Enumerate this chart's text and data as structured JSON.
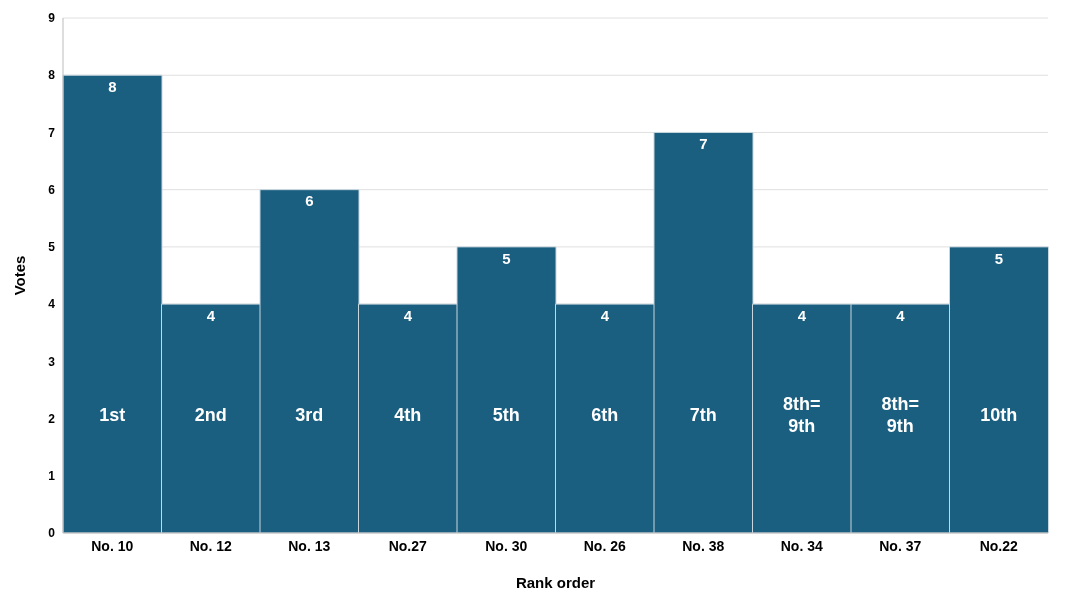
{
  "chart_data": {
    "type": "bar",
    "xlabel": "Rank order",
    "ylabel": "Votes",
    "categories": [
      "No. 10",
      "No. 12",
      "No. 13",
      "No.27",
      "No. 30",
      "No. 26",
      "No. 38",
      "No. 34",
      "No. 37",
      "No.22"
    ],
    "values": [
      8,
      4,
      6,
      4,
      5,
      4,
      7,
      4,
      4,
      5
    ],
    "color": "#1a5f80",
    "ylim": [
      0,
      9
    ],
    "yticks": [
      0,
      1,
      2,
      3,
      4,
      5,
      6,
      7,
      8,
      9
    ],
    "grid": "y",
    "data_labels": true,
    "legend": false,
    "annotations": [
      "1st",
      "2nd",
      "3rd",
      "4th",
      "5th",
      "6th",
      "7th",
      "8th= 9th",
      "8th= 9th",
      "10th"
    ]
  }
}
